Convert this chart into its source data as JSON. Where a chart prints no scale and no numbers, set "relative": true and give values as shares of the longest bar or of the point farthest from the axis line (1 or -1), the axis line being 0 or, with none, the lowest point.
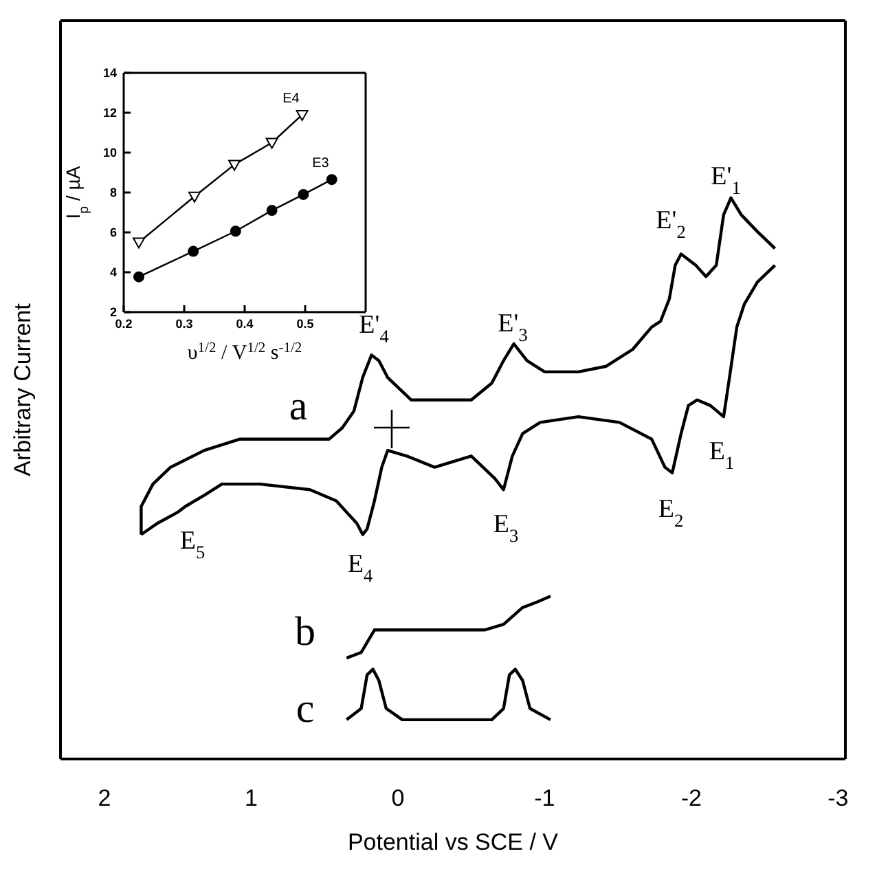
{
  "chart_data": [
    {
      "type": "line",
      "relative": true,
      "xlabel": "Potential vs SCE / V",
      "ylabel": "Arbitrary Current",
      "xlim": [
        2.3,
        -3.05
      ],
      "xticks": [
        2,
        1,
        0,
        -1,
        -2,
        -3
      ],
      "legend": false,
      "grid": false,
      "marker": "none",
      "line_style": "solid",
      "series": [
        {
          "color": "#000000",
          "x": [
            1.75,
            1.75,
            1.67,
            1.55,
            1.32,
            1.08,
            0.7,
            0.47,
            0.38,
            0.3,
            0.24,
            0.18,
            0.13,
            0.07,
            -0.09,
            -0.31,
            -0.5,
            -0.64,
            -0.72,
            -0.79,
            -0.88,
            -1.0,
            -1.23,
            -1.42,
            -1.6,
            -1.73,
            -1.79,
            -1.85,
            -1.89,
            -1.93,
            -2.03,
            -2.1,
            -2.17,
            -2.22,
            -2.27,
            -2.34,
            -2.45,
            -2.57
          ],
          "values": [
            0.4,
            0.45,
            0.49,
            0.52,
            0.55,
            0.57,
            0.57,
            0.57,
            0.59,
            0.62,
            0.68,
            0.72,
            0.71,
            0.68,
            0.64,
            0.64,
            0.64,
            0.67,
            0.71,
            0.74,
            0.71,
            0.69,
            0.69,
            0.7,
            0.73,
            0.77,
            0.78,
            0.82,
            0.88,
            0.9,
            0.88,
            0.86,
            0.88,
            0.97,
            1.0,
            0.97,
            0.94,
            0.91
          ]
        },
        {
          "color": "#000000",
          "x": [
            -2.57,
            -2.45,
            -2.36,
            -2.31,
            -2.26,
            -2.22,
            -2.13,
            -2.04,
            -1.98,
            -1.93,
            -1.87,
            -1.82,
            -1.73,
            -1.51,
            -1.23,
            -0.97,
            -0.85,
            -0.78,
            -0.72,
            -0.66,
            -0.5,
            -0.25,
            -0.06,
            0.07,
            0.11,
            0.16,
            0.21,
            0.24,
            0.28,
            0.42,
            0.6,
            0.94,
            1.2,
            1.32,
            1.45,
            1.5,
            1.64,
            1.75
          ],
          "values": [
            0.88,
            0.85,
            0.81,
            0.77,
            0.68,
            0.61,
            0.63,
            0.64,
            0.63,
            0.58,
            0.51,
            0.52,
            0.57,
            0.6,
            0.61,
            0.6,
            0.58,
            0.54,
            0.48,
            0.5,
            0.54,
            0.52,
            0.54,
            0.55,
            0.52,
            0.46,
            0.41,
            0.4,
            0.42,
            0.46,
            0.48,
            0.49,
            0.49,
            0.47,
            0.45,
            0.44,
            0.42,
            0.4
          ]
        },
        {
          "color": "#000000",
          "x": [
            0.35,
            0.25,
            0.16,
            0.08,
            -0.59,
            -0.72,
            -0.85,
            -0.95,
            -1.04
          ],
          "values": [
            0.18,
            0.19,
            0.23,
            0.23,
            0.23,
            0.24,
            0.27,
            0.28,
            0.29
          ]
        },
        {
          "color": "#000000",
          "x": [
            0.35,
            0.25,
            0.21,
            0.17,
            0.13,
            0.08,
            -0.03,
            -0.64,
            -0.72,
            -0.76,
            -0.8,
            -0.85,
            -0.9,
            -1.04
          ],
          "values": [
            0.07,
            0.09,
            0.15,
            0.16,
            0.14,
            0.09,
            0.07,
            0.07,
            0.09,
            0.15,
            0.16,
            0.14,
            0.09,
            0.07
          ]
        }
      ],
      "annotations": [
        "E'$_{1}$",
        "E'$_{2}$",
        "E'$_{3}$",
        "E'$_{4}$",
        "E$_{1}$",
        "E$_{2}$",
        "E$_{3}$",
        "E$_{4}$",
        "E$_{5}$",
        "a",
        "b",
        "c"
      ]
    },
    {
      "type": "line",
      "xlabel": "υ$^{1/2}$ / V$^{1/2}$ s$^{-1/2}$",
      "ylabel": "I$_{p}$ / µA",
      "xlim": [
        0.2,
        0.6
      ],
      "xticks": [
        0.2,
        0.3,
        0.4,
        0.5
      ],
      "ylim": [
        2,
        14
      ],
      "yticks": [
        2,
        4,
        6,
        8,
        10,
        12,
        14
      ],
      "legend": false,
      "grid": false,
      "line_style": "solid",
      "series": [
        {
          "name": "E4",
          "color": "#000000",
          "marker": "triangle",
          "x": [
            0.225,
            0.317,
            0.383,
            0.445,
            0.495
          ],
          "values": [
            5.5,
            7.8,
            9.4,
            10.5,
            11.9
          ]
        },
        {
          "name": "E3",
          "color": "#000000",
          "marker": "circle",
          "x": [
            0.225,
            0.315,
            0.385,
            0.445,
            0.497,
            0.544
          ],
          "values": [
            3.77,
            5.05,
            6.06,
            7.1,
            7.9,
            8.65
          ]
        }
      ]
    }
  ]
}
